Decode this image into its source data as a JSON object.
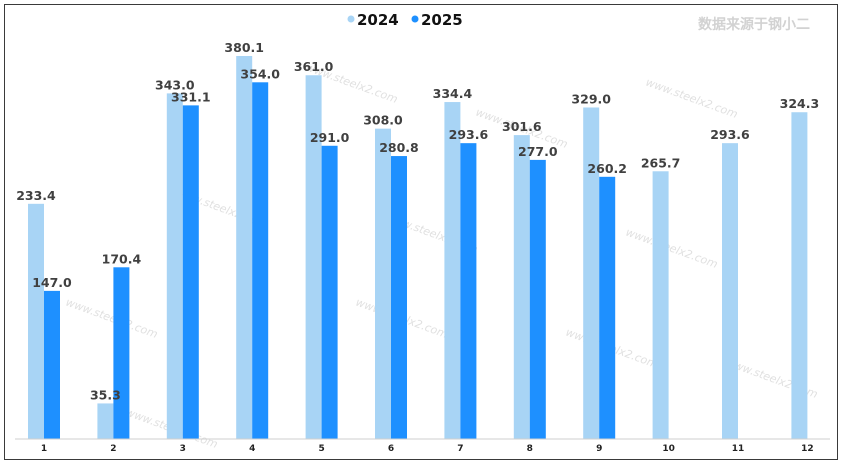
{
  "credit": "数据来源于钢小二",
  "watermark": "www.steelx2.com",
  "chart_data": {
    "type": "bar",
    "categories": [
      "1",
      "2",
      "3",
      "4",
      "5",
      "6",
      "7",
      "8",
      "9",
      "10",
      "11",
      "12"
    ],
    "series": [
      {
        "name": "2024",
        "color": "#a8d4f5",
        "values": [
          233.4,
          35.3,
          343.0,
          380.1,
          361.0,
          308.0,
          334.4,
          301.6,
          329.0,
          265.7,
          293.6,
          324.3
        ],
        "labels": [
          "233.4",
          "35.3",
          "343.0",
          "380.1",
          "361.0",
          "308.0",
          "334.4",
          "301.6",
          "329.0",
          "265.7",
          "293.6",
          "324.3"
        ]
      },
      {
        "name": "2025",
        "color": "#1e90ff",
        "values": [
          147.0,
          170.4,
          331.1,
          354.0,
          291.0,
          280.8,
          293.6,
          277.0,
          260.2,
          null,
          null,
          null
        ],
        "labels": [
          "147.0",
          "170.4",
          "331.1",
          "354.0",
          "291.0",
          "280.8",
          "293.6",
          "277.0",
          "260.2",
          null,
          null,
          null
        ]
      }
    ],
    "legend_position": "top-center",
    "grid": false,
    "title": "",
    "xlabel": "",
    "ylabel": ""
  }
}
